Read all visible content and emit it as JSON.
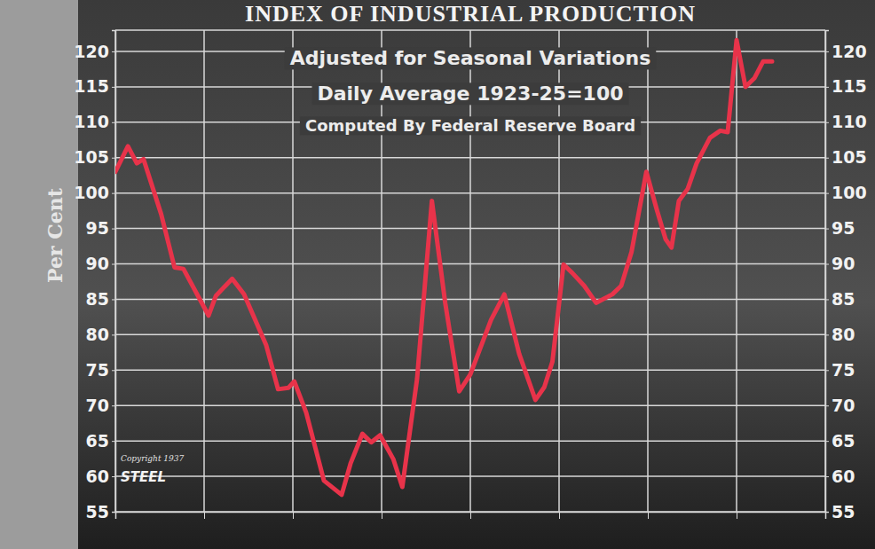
{
  "chart_data": {
    "type": "line",
    "title": "INDEX OF INDUSTRIAL PRODUCTION",
    "subtitle": [
      "Adjusted for Seasonal Variations",
      "Daily Average 1923-25=100",
      "Computed By Federal Reserve Board"
    ],
    "ylabel": "Per Cent",
    "annotations": [
      "Copyright 1937",
      "STEEL"
    ],
    "x": [
      0,
      1.7,
      2.9,
      3.8,
      6.2,
      8,
      9.2,
      12.6,
      13.6,
      15.8,
      17.4,
      20.4,
      22,
      23.4,
      24.2,
      25.8,
      28.2,
      30.6,
      31.8,
      33.4,
      34.6,
      35.8,
      37.6,
      38.8,
      40.8,
      42.8,
      44.6,
      46.5,
      48,
      50.8,
      52.6,
      54.6,
      56.8,
      58,
      59.1,
      60.6,
      61.8,
      63.4,
      65,
      67.2,
      68.4,
      69.8,
      71.8,
      73.2,
      74.4,
      75.2,
      76.2,
      77.4,
      78.6,
      80.4,
      81.8,
      82.8,
      84,
      85.2,
      86.4,
      87.6,
      88.8
    ],
    "series": [
      {
        "name": "Index of Industrial Production",
        "color": "#e8334a",
        "line_style": "solid",
        "values": [
          103,
          106.6,
          104.2,
          104.8,
          97,
          89.5,
          89.3,
          82.7,
          85.5,
          87.9,
          85.7,
          78.5,
          72.3,
          72.5,
          73.4,
          69,
          59.4,
          57.4,
          61.8,
          66,
          64.8,
          65.8,
          62.4,
          58.5,
          73.8,
          98.9,
          84.5,
          72,
          74.4,
          82.1,
          85.7,
          77.3,
          70.8,
          72.6,
          76.2,
          89.9,
          88.7,
          86.9,
          84.5,
          85.7,
          86.9,
          91.7,
          103,
          97.7,
          93.5,
          92.3,
          98.9,
          100.6,
          104.2,
          107.8,
          108.8,
          108.6,
          121.6,
          115,
          116.2,
          118.6,
          118.6
        ]
      }
    ],
    "xlim": [
      0,
      96
    ],
    "xticks": [
      0,
      12,
      24,
      36,
      48,
      60,
      72,
      84,
      96
    ],
    "ylim": [
      55,
      123
    ],
    "yticks": [
      55,
      60,
      65,
      70,
      75,
      80,
      85,
      90,
      95,
      100,
      105,
      110,
      115,
      120
    ],
    "grid": true,
    "tick_labels": "y"
  }
}
